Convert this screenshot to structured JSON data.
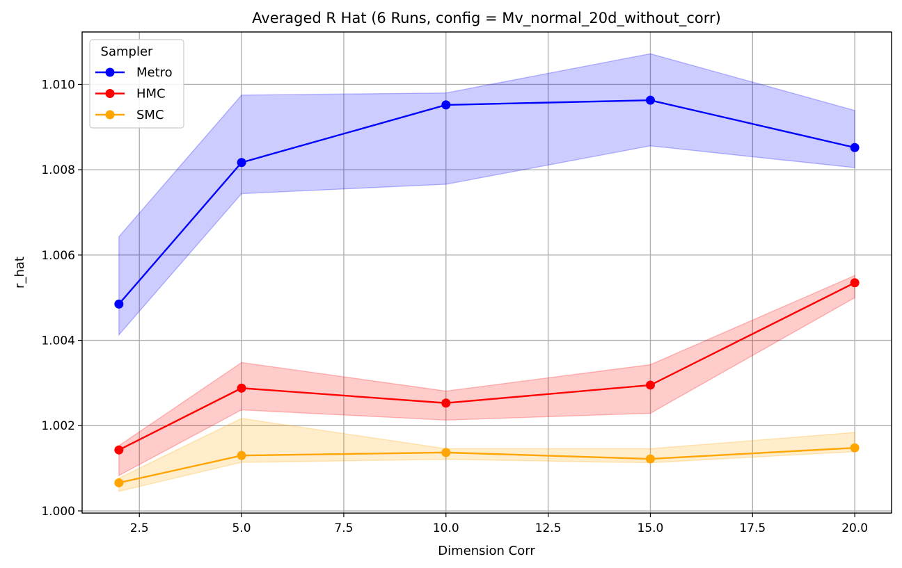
{
  "chart_data": {
    "type": "line",
    "title": "Averaged R Hat (6 Runs, config = Mv_normal_20d_without_corr)",
    "xlabel": "Dimension Corr",
    "ylabel": "r_hat",
    "xlim": [
      1.1,
      20.9
    ],
    "ylim": [
      0.99995,
      1.01123
    ],
    "x_ticks": [
      2.5,
      5.0,
      7.5,
      10.0,
      12.5,
      15.0,
      17.5,
      20.0
    ],
    "x_tick_labels": [
      "2.5",
      "5.0",
      "7.5",
      "10.0",
      "12.5",
      "15.0",
      "17.5",
      "20.0"
    ],
    "y_ticks": [
      1.0,
      1.002,
      1.004,
      1.006,
      1.008,
      1.01
    ],
    "y_tick_labels": [
      "1.000",
      "1.002",
      "1.004",
      "1.006",
      "1.008",
      "1.010"
    ],
    "grid": true,
    "legend": {
      "title": "Sampler",
      "placement": "top-left"
    },
    "x": [
      2,
      5,
      10,
      15,
      20
    ],
    "series": [
      {
        "name": "Metro",
        "color": "#0000ff",
        "fill_color": "#0000ff",
        "values": [
          1.00485,
          1.00817,
          1.00952,
          1.00963,
          1.00852
        ],
        "lower": [
          1.00413,
          1.00744,
          1.00766,
          1.00856,
          1.00805
        ],
        "upper": [
          1.00643,
          1.00975,
          1.0098,
          1.01072,
          1.00939
        ]
      },
      {
        "name": "HMC",
        "color": "#ff0000",
        "fill_color": "#ff0000",
        "values": [
          1.00143,
          1.00288,
          1.00253,
          1.00295,
          1.00535
        ],
        "lower": [
          1.00083,
          1.00237,
          1.00213,
          1.00229,
          1.005
        ],
        "upper": [
          1.00153,
          1.00348,
          1.00281,
          1.00343,
          1.00552
        ]
      },
      {
        "name": "SMC",
        "color": "#ffa500",
        "fill_color": "#ffa500",
        "values": [
          1.00066,
          1.0013,
          1.00137,
          1.00122,
          1.00148
        ],
        "lower": [
          1.00046,
          1.00114,
          1.00121,
          1.00113,
          1.00139
        ],
        "upper": [
          1.00077,
          1.00217,
          1.00146,
          1.00146,
          1.00184
        ]
      }
    ]
  }
}
